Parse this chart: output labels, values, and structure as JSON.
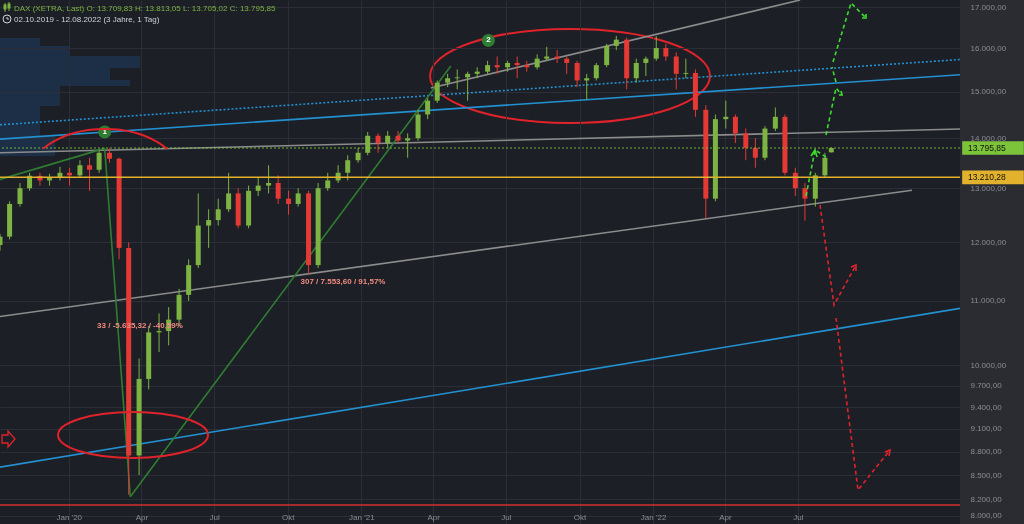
{
  "chart_data": {
    "type": "candlestick",
    "title": "DAX (XETRA, Last)  O: 13.709,83  H: 13.813,05  L: 13.705,02  C: 13.795,85",
    "subtitle": "02.10.2019 - 12.08.2022   (3 Jahre, 1 Tag)",
    "x": [
      "2019-10-07",
      "2019-10-19",
      "2019-11-01",
      "2019-11-13",
      "2019-11-26",
      "2019-12-08",
      "2019-12-21",
      "2020-01-02",
      "2020-01-15",
      "2020-01-27",
      "2020-02-08",
      "2020-02-21",
      "2020-03-04",
      "2020-03-16",
      "2020-03-29",
      "2020-04-10",
      "2020-04-23",
      "2020-05-05",
      "2020-05-18",
      "2020-05-30",
      "2020-06-11",
      "2020-06-24",
      "2020-07-06",
      "2020-07-19",
      "2020-07-31",
      "2020-08-13",
      "2020-08-25",
      "2020-09-07",
      "2020-09-19",
      "2020-10-02",
      "2020-10-14",
      "2020-10-27",
      "2020-11-08",
      "2020-11-20",
      "2020-12-03",
      "2020-12-15",
      "2020-12-28",
      "2021-01-09",
      "2021-01-22",
      "2021-02-03",
      "2021-02-16",
      "2021-02-28",
      "2021-03-13",
      "2021-03-25",
      "2021-04-06",
      "2021-04-19",
      "2021-05-01",
      "2021-05-14",
      "2021-05-26",
      "2021-06-08",
      "2021-06-20",
      "2021-07-03",
      "2021-07-15",
      "2021-07-27",
      "2021-08-09",
      "2021-08-21",
      "2021-09-03",
      "2021-09-15",
      "2021-09-28",
      "2021-10-10",
      "2021-10-22",
      "2021-11-04",
      "2021-11-16",
      "2021-11-29",
      "2021-12-11",
      "2021-12-23",
      "2022-01-05",
      "2022-01-17",
      "2022-01-30",
      "2022-02-11",
      "2022-02-23",
      "2022-03-08",
      "2022-03-20",
      "2022-04-02",
      "2022-04-14",
      "2022-04-27",
      "2022-05-09",
      "2022-05-21",
      "2022-06-03",
      "2022-06-15",
      "2022-06-28",
      "2022-07-10",
      "2022-07-23",
      "2022-08-04",
      "2022-08-12"
    ],
    "ohlc": [
      [
        11950,
        12150,
        11850,
        12100
      ],
      [
        12100,
        12750,
        12050,
        12700
      ],
      [
        12700,
        13100,
        12650,
        13000
      ],
      [
        13000,
        13300,
        12950,
        13240
      ],
      [
        13240,
        13300,
        13050,
        13150
      ],
      [
        13150,
        13280,
        13050,
        13200
      ],
      [
        13200,
        13420,
        13150,
        13300
      ],
      [
        13300,
        13400,
        13050,
        13250
      ],
      [
        13250,
        13550,
        13200,
        13450
      ],
      [
        13450,
        13600,
        12950,
        13360
      ],
      [
        13360,
        13760,
        13300,
        13700
      ],
      [
        13700,
        13795,
        13500,
        13580
      ],
      [
        13580,
        13600,
        11700,
        11900
      ],
      [
        11900,
        12000,
        8255,
        8750
      ],
      [
        8750,
        10100,
        8500,
        9800
      ],
      [
        9800,
        10600,
        9650,
        10500
      ],
      [
        10500,
        10800,
        10200,
        10520
      ],
      [
        10520,
        10900,
        10300,
        10700
      ],
      [
        10700,
        11200,
        10600,
        11100
      ],
      [
        11100,
        11700,
        11000,
        11600
      ],
      [
        11600,
        12900,
        11550,
        12300
      ],
      [
        12300,
        12600,
        11900,
        12400
      ],
      [
        12400,
        12800,
        12300,
        12600
      ],
      [
        12600,
        13300,
        12550,
        12900
      ],
      [
        12900,
        13000,
        12250,
        12300
      ],
      [
        12300,
        13050,
        12250,
        12950
      ],
      [
        12950,
        13200,
        12850,
        13050
      ],
      [
        13050,
        13450,
        12900,
        13100
      ],
      [
        13100,
        13250,
        12700,
        12800
      ],
      [
        12800,
        12950,
        12500,
        12700
      ],
      [
        12700,
        13000,
        12650,
        12900
      ],
      [
        12900,
        12950,
        11450,
        11600
      ],
      [
        11600,
        13100,
        11550,
        13000
      ],
      [
        13000,
        13300,
        12950,
        13150
      ],
      [
        13150,
        13450,
        13100,
        13300
      ],
      [
        13300,
        13650,
        13150,
        13550
      ],
      [
        13550,
        13800,
        13500,
        13700
      ],
      [
        13700,
        14130,
        13650,
        14050
      ],
      [
        14050,
        14100,
        13700,
        13900
      ],
      [
        13900,
        14150,
        13800,
        14050
      ],
      [
        14050,
        14150,
        13900,
        13950
      ],
      [
        13950,
        14100,
        13600,
        14000
      ],
      [
        14000,
        14600,
        13950,
        14500
      ],
      [
        14500,
        14850,
        14400,
        14800
      ],
      [
        14800,
        15250,
        14750,
        15200
      ],
      [
        15200,
        15400,
        15100,
        15300
      ],
      [
        15300,
        15500,
        15050,
        15320
      ],
      [
        15320,
        15450,
        14800,
        15400
      ],
      [
        15400,
        15550,
        15300,
        15450
      ],
      [
        15450,
        15700,
        15400,
        15600
      ],
      [
        15600,
        15800,
        15400,
        15550
      ],
      [
        15550,
        15700,
        15450,
        15650
      ],
      [
        15650,
        15800,
        15300,
        15600
      ],
      [
        15600,
        15700,
        15450,
        15550
      ],
      [
        15550,
        15850,
        15500,
        15750
      ],
      [
        15750,
        16030,
        15700,
        15800
      ],
      [
        15800,
        15950,
        15650,
        15750
      ],
      [
        15750,
        15800,
        15400,
        15650
      ],
      [
        15650,
        15700,
        15100,
        15250
      ],
      [
        15250,
        15400,
        14820,
        15300
      ],
      [
        15300,
        15650,
        15250,
        15600
      ],
      [
        15600,
        16100,
        15550,
        16050
      ],
      [
        16050,
        16290,
        15950,
        16200
      ],
      [
        16200,
        16250,
        15050,
        15300
      ],
      [
        15300,
        15750,
        15200,
        15650
      ],
      [
        15650,
        15800,
        15350,
        15750
      ],
      [
        15750,
        16285,
        15700,
        16000
      ],
      [
        16000,
        16100,
        15700,
        15800
      ],
      [
        15800,
        15900,
        15050,
        15400
      ],
      [
        15400,
        15750,
        15300,
        15420
      ],
      [
        15420,
        15500,
        14450,
        14600
      ],
      [
        14600,
        14700,
        12440,
        12800
      ],
      [
        12800,
        14500,
        12750,
        14400
      ],
      [
        14400,
        14800,
        14200,
        14450
      ],
      [
        14450,
        14500,
        13900,
        14100
      ],
      [
        14100,
        14200,
        13550,
        13800
      ],
      [
        13800,
        14000,
        13400,
        13600
      ],
      [
        13600,
        14250,
        13550,
        14200
      ],
      [
        14200,
        14650,
        14150,
        14450
      ],
      [
        14450,
        14500,
        13250,
        13300
      ],
      [
        13300,
        13400,
        12850,
        13000
      ],
      [
        13000,
        13100,
        12390,
        12800
      ],
      [
        12800,
        13300,
        12650,
        13250
      ],
      [
        13250,
        13700,
        13200,
        13600
      ],
      [
        13709.83,
        13813.05,
        13705.02,
        13795.85
      ]
    ],
    "colors": [
      "#7cb342",
      "#7cb342",
      "#7cb342",
      "#7cb342",
      "#e53935",
      "#7cb342",
      "#7cb342",
      "#e53935",
      "#7cb342",
      "#e53935",
      "#7cb342",
      "#e53935",
      "#e53935",
      "#e53935",
      "#7cb342",
      "#7cb342",
      "#7cb342",
      "#7cb342",
      "#7cb342",
      "#7cb342",
      "#7cb342",
      "#7cb342",
      "#7cb342",
      "#7cb342",
      "#e53935",
      "#7cb342",
      "#7cb342",
      "#7cb342",
      "#e53935",
      "#e53935",
      "#7cb342",
      "#e53935",
      "#7cb342",
      "#7cb342",
      "#7cb342",
      "#7cb342",
      "#7cb342",
      "#7cb342",
      "#e53935",
      "#7cb342",
      "#e53935",
      "#7cb342",
      "#7cb342",
      "#7cb342",
      "#7cb342",
      "#7cb342",
      "#7cb342",
      "#7cb342",
      "#7cb342",
      "#7cb342",
      "#e53935",
      "#7cb342",
      "#e53935",
      "#e53935",
      "#7cb342",
      "#7cb342",
      "#e53935",
      "#e53935",
      "#e53935",
      "#7cb342",
      "#7cb342",
      "#7cb342",
      "#7cb342",
      "#e53935",
      "#7cb342",
      "#7cb342",
      "#7cb342",
      "#e53935",
      "#e53935",
      "#7cb342",
      "#e53935",
      "#e53935",
      "#7cb342",
      "#7cb342",
      "#e53935",
      "#e53935",
      "#e53935",
      "#7cb342",
      "#7cb342",
      "#e53935",
      "#e53935",
      "#e53935",
      "#7cb342",
      "#7cb342",
      "#7cb342"
    ],
    "series": [
      {
        "type": "line",
        "color": "#2390d0",
        "line_style": "solid",
        "x": [
          "2019-10-07",
          "2023-01-20"
        ],
        "values": [
          8600,
          10880
        ]
      },
      {
        "type": "line",
        "color": "#2390d0",
        "line_style": "solid",
        "x": [
          "2019-10-07",
          "2023-01-20"
        ],
        "values": [
          13980,
          15380
        ]
      },
      {
        "type": "line",
        "color": "#2390d0",
        "line_style": "dotted",
        "x": [
          "2019-10-07",
          "2023-01-20"
        ],
        "values": [
          14280,
          15730
        ]
      },
      {
        "type": "line",
        "color": "#8c8c8c",
        "line_style": "solid",
        "x": [
          "2019-10-07",
          "2023-01-20"
        ],
        "values": [
          13700,
          14190
        ]
      },
      {
        "type": "line",
        "color": "#8c8c8c",
        "line_style": "solid",
        "x": [
          "2019-10-07",
          "2022-11-21"
        ],
        "values": [
          10750,
          12960
        ]
      },
      {
        "type": "line",
        "color": "#8c8c8c",
        "line_style": "solid",
        "x": [
          "2021-03-29",
          "2022-07-04"
        ],
        "values": [
          15080,
          17180
        ]
      },
      {
        "type": "line",
        "color": "#2e7d32",
        "line_style": "solid",
        "x": [
          "2019-10-07",
          "2020-02-15"
        ],
        "values": [
          13170,
          13790
        ]
      },
      {
        "type": "line",
        "color": "#2e7d32",
        "line_style": "solid",
        "x": [
          "2020-02-15",
          "2020-03-18"
        ],
        "values": [
          13790,
          8230
        ]
      },
      {
        "type": "line",
        "color": "#2e7d32",
        "line_style": "solid",
        "x": [
          "2020-03-18",
          "2021-04-23"
        ],
        "values": [
          8230,
          15580
        ]
      }
    ],
    "xlim": [
      "2019-10-07",
      "2023-01-20"
    ],
    "xticks": [
      {
        "value": "2020-01-01",
        "label": "Jan '20"
      },
      {
        "value": "2020-04-01",
        "label": "Apr"
      },
      {
        "value": "2020-07-01",
        "label": "Jul"
      },
      {
        "value": "2020-10-01",
        "label": "Okt"
      },
      {
        "value": "2021-01-01",
        "label": "Jan '21"
      },
      {
        "value": "2021-04-01",
        "label": "Apr"
      },
      {
        "value": "2021-07-01",
        "label": "Jul"
      },
      {
        "value": "2021-10-01",
        "label": "Okt"
      },
      {
        "value": "2022-01-01",
        "label": "Jan '22"
      },
      {
        "value": "2022-04-01",
        "label": "Apr"
      },
      {
        "value": "2022-07-01",
        "label": "Jul"
      }
    ],
    "ylim": [
      7905,
      17180
    ],
    "log": true,
    "yticks": [
      {
        "value": 8000,
        "label": "8.000,00"
      },
      {
        "value": 8200,
        "label": "8.200,00"
      },
      {
        "value": 8500,
        "label": "8.500,00"
      },
      {
        "value": 8800,
        "label": "8.800,00"
      },
      {
        "value": 9100,
        "label": "9.100,00"
      },
      {
        "value": 9400,
        "label": "9.400,00"
      },
      {
        "value": 9700,
        "label": "9.700,00"
      },
      {
        "value": 10000,
        "label": "10.000,00"
      },
      {
        "value": 11000,
        "label": "11.000,00"
      },
      {
        "value": 12000,
        "label": "12.000,00"
      },
      {
        "value": 13000,
        "label": "13.000,00"
      },
      {
        "value": 14000,
        "label": "14.000,00"
      },
      {
        "value": 15000,
        "label": "15.000,00"
      },
      {
        "value": 16000,
        "label": "16.000,00"
      },
      {
        "value": 17000,
        "label": "17.000,00"
      }
    ],
    "ref_lines": [
      {
        "axis": "y",
        "value": 13795.85,
        "label": "13.795,85",
        "color": "#7cc43a",
        "line_style": "dotted"
      },
      {
        "axis": "y",
        "value": 13210.28,
        "label": "13.210,28",
        "color": "#e3b22c",
        "line_style": "solid"
      },
      {
        "axis": "y",
        "value": 8130,
        "color": "#d32f2f",
        "line_style": "solid"
      }
    ],
    "annotations": [
      {
        "text": "1",
        "x": "2020-02-15",
        "y": 14130
      },
      {
        "text": "2",
        "x": "2021-06-09",
        "y": 16180
      },
      "33 / -5.635,32 / -40,59%",
      "307 / 7.553,60 / 91,57%"
    ],
    "grid": true
  }
}
